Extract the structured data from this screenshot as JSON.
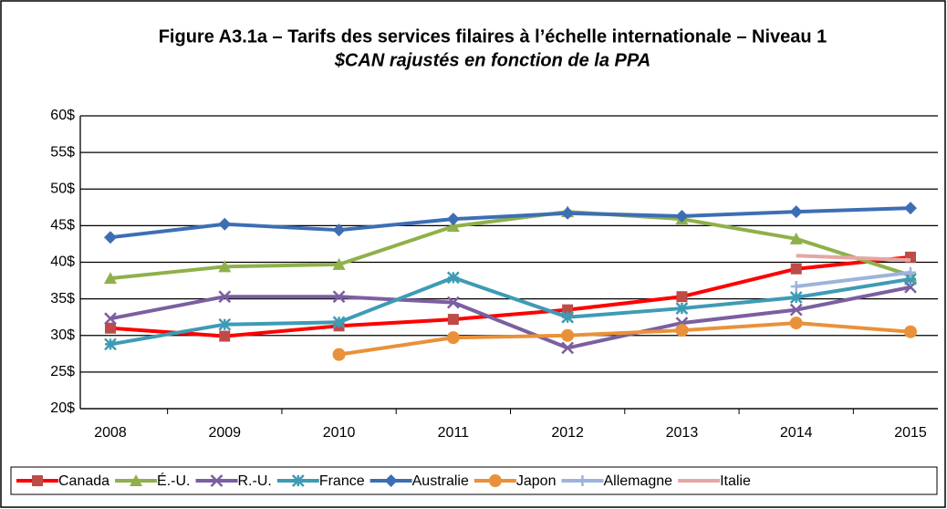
{
  "chart_data": {
    "type": "line",
    "title": "Figure A3.1a – Tarifs des services filaires à l’échelle internationale – Niveau 1",
    "subtitle": "$CAN rajustés en fonction de la PPA",
    "categories": [
      "2008",
      "2009",
      "2010",
      "2011",
      "2012",
      "2013",
      "2014",
      "2015"
    ],
    "ylim": [
      20,
      60
    ],
    "yticks": [
      {
        "value": 20,
        "label": "20$"
      },
      {
        "value": 25,
        "label": "25$"
      },
      {
        "value": 30,
        "label": "30$"
      },
      {
        "value": 35,
        "label": "35$"
      },
      {
        "value": 40,
        "label": "40$"
      },
      {
        "value": 45,
        "label": "45$"
      },
      {
        "value": 50,
        "label": "50$"
      },
      {
        "value": 55,
        "label": "55$"
      },
      {
        "value": 60,
        "label": "60$"
      }
    ],
    "grid": true,
    "legend": "bottom",
    "series": [
      {
        "name": "Canada",
        "color": "#ff0000",
        "marker": "square",
        "markerColor": "#be4b48",
        "values": [
          31.0,
          29.9,
          31.3,
          32.2,
          33.5,
          35.3,
          39.1,
          40.7
        ]
      },
      {
        "name": "É.-U.",
        "color": "#8fb04a",
        "marker": "triangle",
        "values": [
          37.8,
          39.4,
          39.7,
          44.9,
          46.9,
          45.9,
          43.2,
          38.2
        ]
      },
      {
        "name": "R.-U.",
        "color": "#7b5fa0",
        "marker": "x",
        "values": [
          32.3,
          35.3,
          35.3,
          34.5,
          28.3,
          31.7,
          33.5,
          36.6
        ]
      },
      {
        "name": "France",
        "color": "#3e9bb5",
        "marker": "star",
        "values": [
          28.8,
          31.5,
          31.8,
          37.9,
          32.5,
          33.7,
          35.2,
          37.7
        ]
      },
      {
        "name": "Australie",
        "color": "#3d6eb4",
        "marker": "diamond",
        "values": [
          43.4,
          45.2,
          44.4,
          45.9,
          46.7,
          46.3,
          46.9,
          47.4
        ]
      },
      {
        "name": "Japon",
        "color": "#e9913a",
        "marker": "circle",
        "values": [
          null,
          null,
          27.4,
          29.7,
          30.0,
          30.7,
          31.7,
          30.5
        ]
      },
      {
        "name": "Allemagne",
        "color": "#9cb4db",
        "marker": "plus",
        "values": [
          null,
          null,
          null,
          null,
          null,
          null,
          36.7,
          38.6
        ]
      },
      {
        "name": "Italie",
        "color": "#e6a6a4",
        "marker": "none",
        "values": [
          null,
          null,
          null,
          null,
          null,
          null,
          40.9,
          40.3
        ]
      }
    ]
  }
}
